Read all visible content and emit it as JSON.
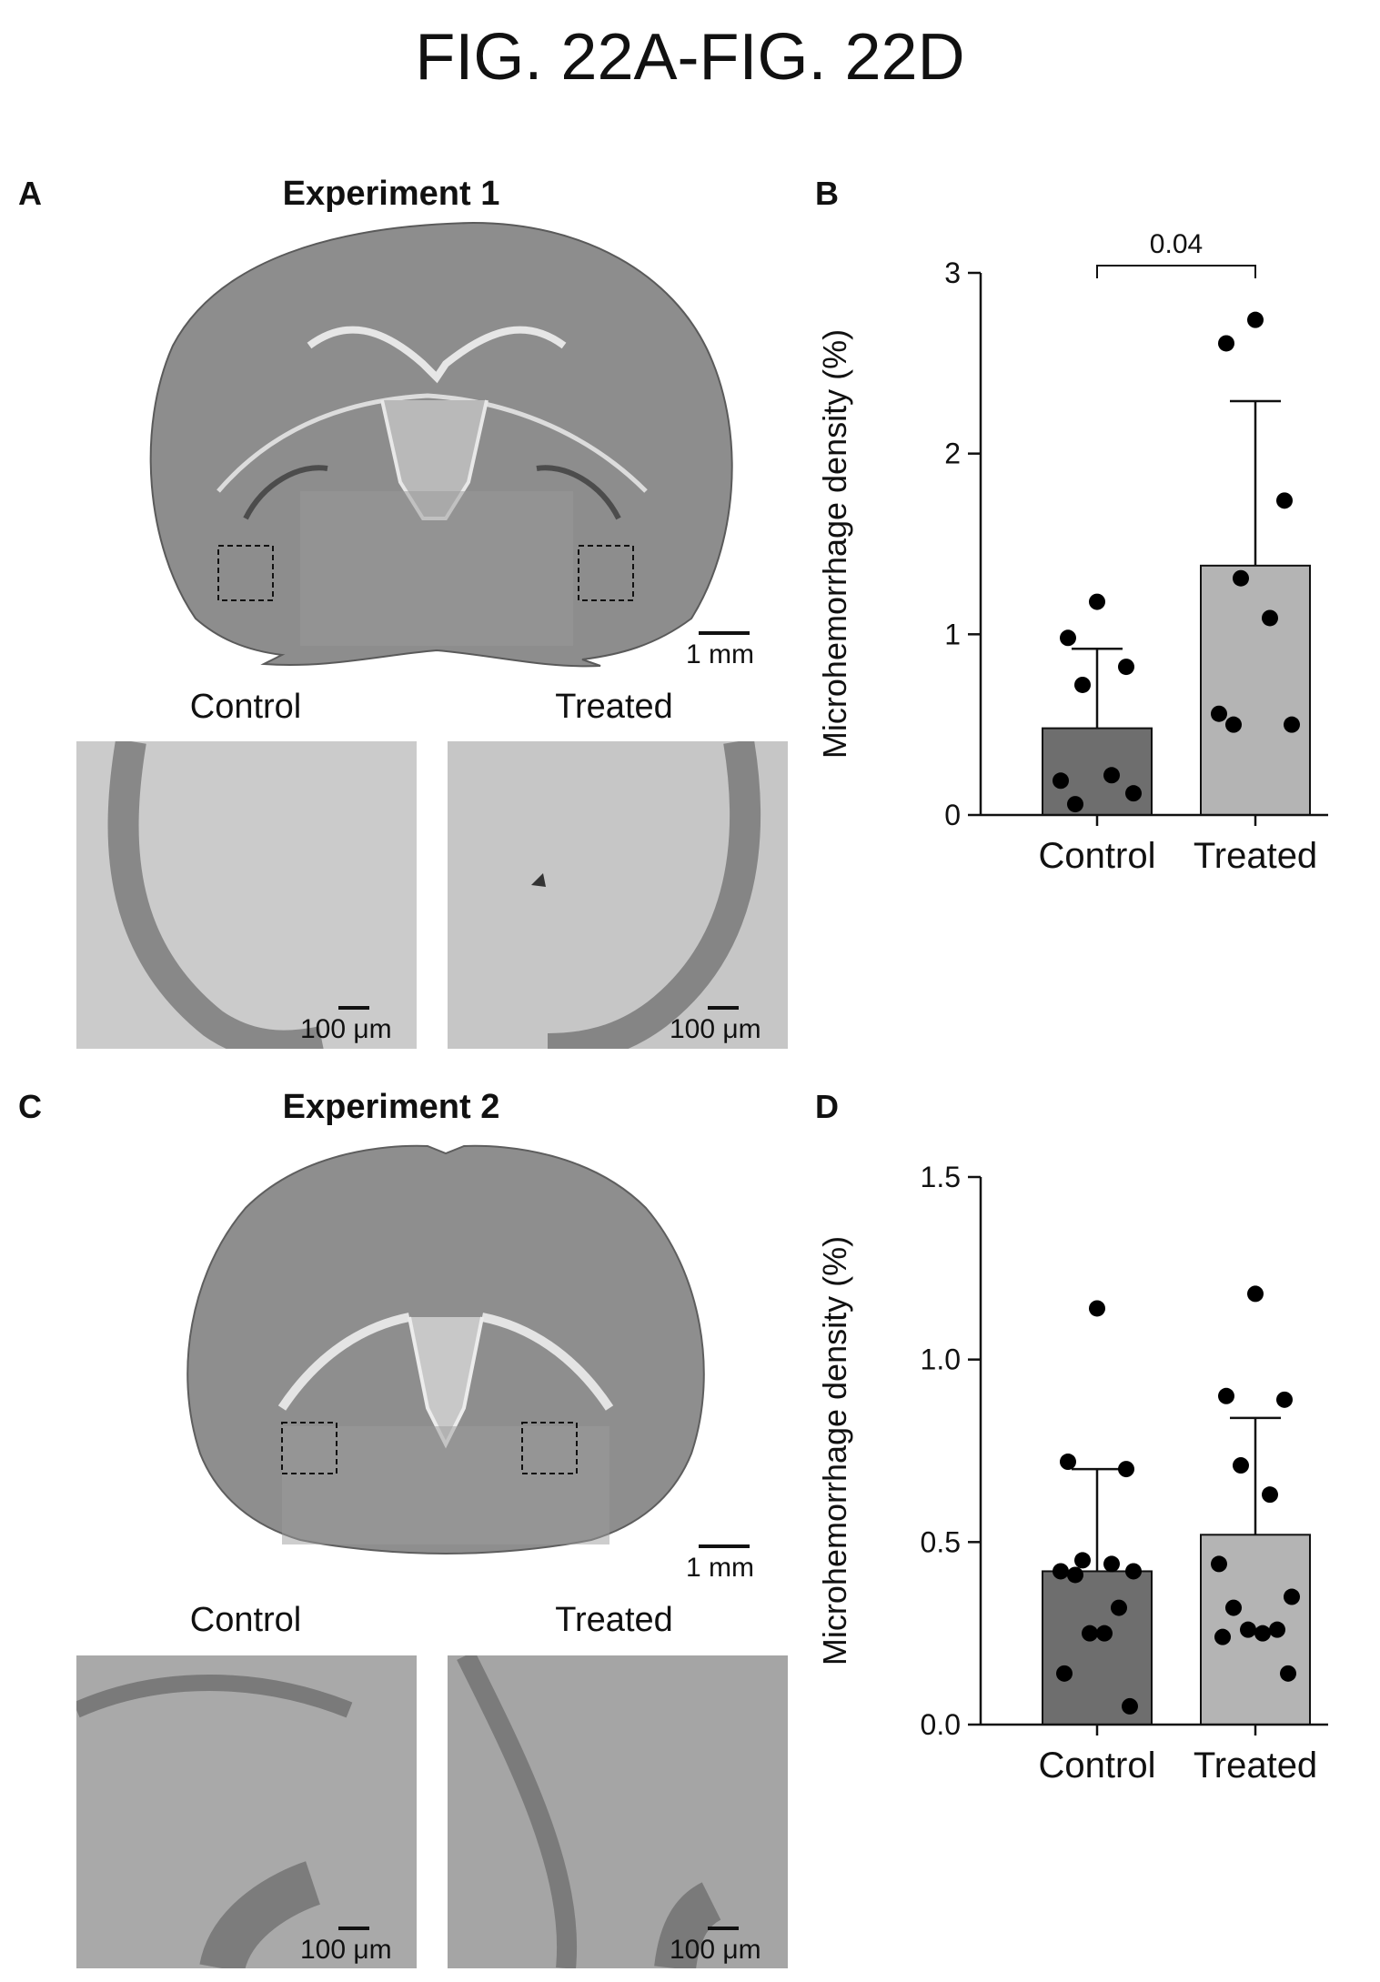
{
  "figure": {
    "title": "FIG. 22A-FIG. 22D"
  },
  "panels": {
    "A": {
      "letter": "A",
      "title": "Experiment 1",
      "scale_label": "1 mm",
      "insets": [
        {
          "label": "Control",
          "scale_label": "100 μm"
        },
        {
          "label": "Treated",
          "scale_label": "100 μm"
        }
      ]
    },
    "B": {
      "letter": "B"
    },
    "C": {
      "letter": "C",
      "title": "Experiment 2",
      "scale_label": "1 mm",
      "insets": [
        {
          "label": "Control",
          "scale_label": "100 μm"
        },
        {
          "label": "Treated",
          "scale_label": "100 μm"
        }
      ]
    },
    "D": {
      "letter": "D"
    }
  },
  "chart_data": [
    {
      "panel": "B",
      "type": "bar",
      "categories": [
        "Control",
        "Treated"
      ],
      "ylabel": "Microhemorrhage density (%)",
      "ylim": [
        0,
        3
      ],
      "yticks": [
        0,
        1,
        2,
        3
      ],
      "ytick_labels": [
        "0",
        "1",
        "2",
        "3"
      ],
      "bar_colors": [
        "#6e6e6e",
        "#b4b4b4"
      ],
      "series": [
        {
          "values": [
            0.48,
            1.38
          ],
          "error_upper": [
            0.92,
            2.29
          ]
        }
      ],
      "points": [
        [
          1.18,
          0.98,
          0.82,
          0.72,
          0.22,
          0.19,
          0.12,
          0.06
        ],
        [
          2.74,
          2.61,
          1.74,
          1.31,
          1.09,
          0.56,
          0.5,
          0.5
        ]
      ],
      "annotations": [
        {
          "text": "0.04",
          "between": [
            0,
            1
          ],
          "y": 3.0
        }
      ]
    },
    {
      "panel": "D",
      "type": "bar",
      "categories": [
        "Control",
        "Treated"
      ],
      "ylabel": "Microhemorrhage density (%)",
      "ylim": [
        0,
        1.5
      ],
      "yticks": [
        0,
        0.5,
        1.0,
        1.5
      ],
      "ytick_labels": [
        "0.0",
        "0.5",
        "1.0",
        "1.5"
      ],
      "bar_colors": [
        "#6e6e6e",
        "#b4b4b4"
      ],
      "series": [
        {
          "values": [
            0.42,
            0.52
          ],
          "error_upper": [
            0.7,
            0.84
          ]
        }
      ],
      "points": [
        [
          1.14,
          0.72,
          0.7,
          0.45,
          0.44,
          0.42,
          0.42,
          0.41,
          0.32,
          0.25,
          0.25,
          0.14,
          0.05
        ],
        [
          1.18,
          0.9,
          0.89,
          0.71,
          0.63,
          0.44,
          0.35,
          0.32,
          0.26,
          0.26,
          0.25,
          0.24,
          0.14
        ]
      ],
      "annotations": []
    }
  ]
}
